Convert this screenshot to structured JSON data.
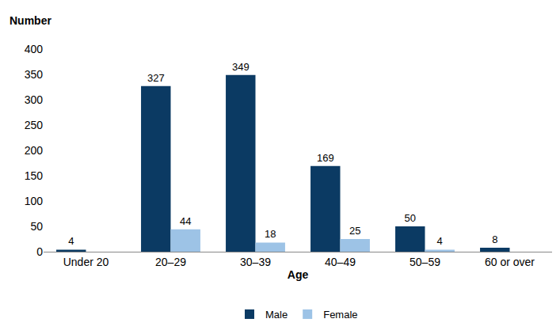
{
  "chart_data": {
    "type": "bar",
    "y_label": "Number",
    "x_label": "Age",
    "categories": [
      "Under 20",
      "20–29",
      "30–39",
      "40–49",
      "50–59",
      "60 or over"
    ],
    "series": [
      {
        "name": "Male",
        "color": "#0b3a63",
        "values": [
          4,
          327,
          349,
          169,
          50,
          8
        ]
      },
      {
        "name": "Female",
        "color": "#9dc3e6",
        "values": [
          null,
          44,
          18,
          25,
          4,
          null
        ]
      }
    ],
    "ylim": [
      0,
      400
    ],
    "yticks": [
      0,
      50,
      100,
      150,
      200,
      250,
      300,
      350,
      400
    ],
    "grid": false,
    "legend": "bottom",
    "data_labels": true
  }
}
